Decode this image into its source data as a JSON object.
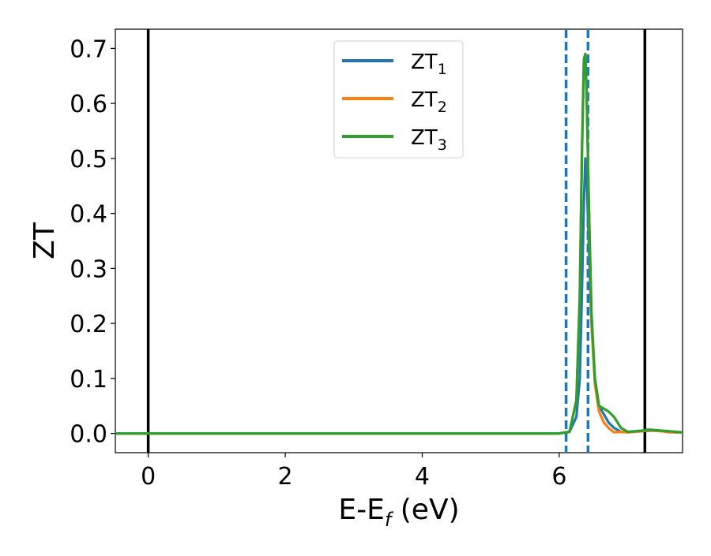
{
  "chart_data": {
    "type": "line",
    "title": "",
    "xlabel": {
      "main": "E-E",
      "sub": "f",
      "unit": " (eV)"
    },
    "ylabel": "ZT",
    "xlim": [
      -0.48,
      7.8
    ],
    "ylim": [
      -0.035,
      0.735
    ],
    "x_ticks": [
      0,
      2,
      4,
      6
    ],
    "x_tick_labels": [
      "0",
      "2",
      "4",
      "6"
    ],
    "y_ticks": [
      0.0,
      0.1,
      0.2,
      0.3,
      0.4,
      0.5,
      0.6,
      0.7
    ],
    "y_tick_labels": [
      "0.0",
      "0.1",
      "0.2",
      "0.3",
      "0.4",
      "0.5",
      "0.6",
      "0.7"
    ],
    "grid": false,
    "legend_placement": "upper center",
    "vertical_lines": [
      {
        "x": 0.0,
        "style": "solid",
        "color": "#000000"
      },
      {
        "x": 7.25,
        "style": "solid",
        "color": "#000000"
      },
      {
        "x": 6.1,
        "style": "dashed",
        "color": "#1f77b4"
      },
      {
        "x": 6.42,
        "style": "dashed",
        "color": "#1f77b4"
      }
    ],
    "series": [
      {
        "name": "ZT",
        "sub": "1",
        "color": "#1f77b4",
        "x": [
          -0.48,
          6.0,
          6.15,
          6.25,
          6.3,
          6.33,
          6.36,
          6.38,
          6.4,
          6.43,
          6.47,
          6.52,
          6.58,
          6.65,
          6.72,
          6.8,
          6.9,
          7.0,
          7.1,
          7.2,
          7.3,
          7.4,
          7.5,
          7.6,
          7.7,
          7.8
        ],
        "y": [
          0.0,
          0.0,
          0.003,
          0.03,
          0.1,
          0.25,
          0.42,
          0.5,
          0.47,
          0.35,
          0.2,
          0.1,
          0.05,
          0.035,
          0.02,
          0.01,
          0.003,
          0.002,
          0.003,
          0.004,
          0.005,
          0.005,
          0.004,
          0.003,
          0.002,
          0.002
        ]
      },
      {
        "name": "ZT",
        "sub": "2",
        "color": "#ff7f0e",
        "x": [
          -0.48,
          6.0,
          6.15,
          6.25,
          6.3,
          6.33,
          6.36,
          6.38,
          6.4,
          6.43,
          6.47,
          6.52,
          6.58,
          6.65,
          6.72,
          6.8,
          6.9,
          7.0,
          7.1,
          7.2,
          7.3,
          7.4,
          7.5,
          7.6,
          7.7,
          7.8
        ],
        "y": [
          0.0,
          0.0,
          0.003,
          0.06,
          0.25,
          0.5,
          0.68,
          0.69,
          0.62,
          0.42,
          0.2,
          0.09,
          0.04,
          0.02,
          0.01,
          0.002,
          0.003,
          0.002,
          0.003,
          0.004,
          0.006,
          0.005,
          0.004,
          0.002,
          0.002,
          0.002
        ]
      },
      {
        "name": "ZT",
        "sub": "3",
        "color": "#2ca02c",
        "x": [
          -0.48,
          6.0,
          6.15,
          6.25,
          6.3,
          6.33,
          6.36,
          6.38,
          6.4,
          6.43,
          6.47,
          6.52,
          6.58,
          6.65,
          6.72,
          6.8,
          6.9,
          7.0,
          7.1,
          7.2,
          7.3,
          7.4,
          7.5,
          7.6,
          7.7,
          7.8
        ],
        "y": [
          0.0,
          0.0,
          0.003,
          0.06,
          0.25,
          0.5,
          0.68,
          0.69,
          0.62,
          0.43,
          0.22,
          0.1,
          0.05,
          0.045,
          0.04,
          0.03,
          0.01,
          0.003,
          0.004,
          0.005,
          0.007,
          0.006,
          0.005,
          0.004,
          0.003,
          0.002
        ]
      }
    ]
  }
}
